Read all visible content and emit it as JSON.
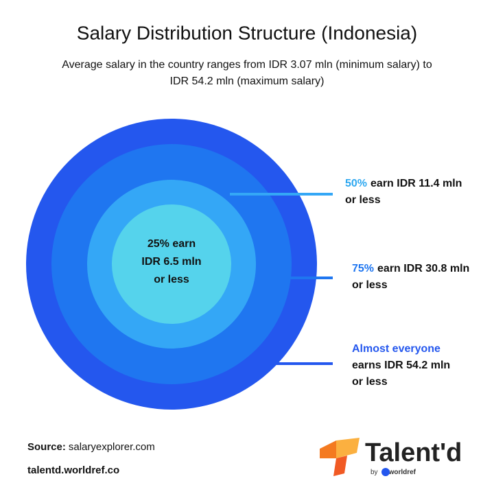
{
  "header": {
    "title": "Salary Distribution Structure (Indonesia)",
    "subtitle": [
      "Average salary in the country ranges from IDR 3.07 mln (minimum salary) to",
      "IDR 54.2 mln (maximum salary)"
    ]
  },
  "center": {
    "lines": [
      "25% earn",
      "IDR 6.5 mln",
      "or less"
    ]
  },
  "callouts": [
    {
      "highlight": "50%",
      "lines": [
        "earn IDR 11.4 mln",
        "or less"
      ]
    },
    {
      "highlight": "75%",
      "lines": [
        "earn IDR 30.8 mln",
        "or less"
      ]
    },
    {
      "highlight": "Almost everyone",
      "lines": [
        "earns IDR 54.2 mln",
        "or less"
      ]
    }
  ],
  "footer": {
    "source_label": "Source:",
    "source": "salaryexplorer.com",
    "site": "talentd.worldref.co"
  },
  "logo": {
    "name": "Talent'd",
    "by": "by",
    "brand": "worldref"
  }
}
